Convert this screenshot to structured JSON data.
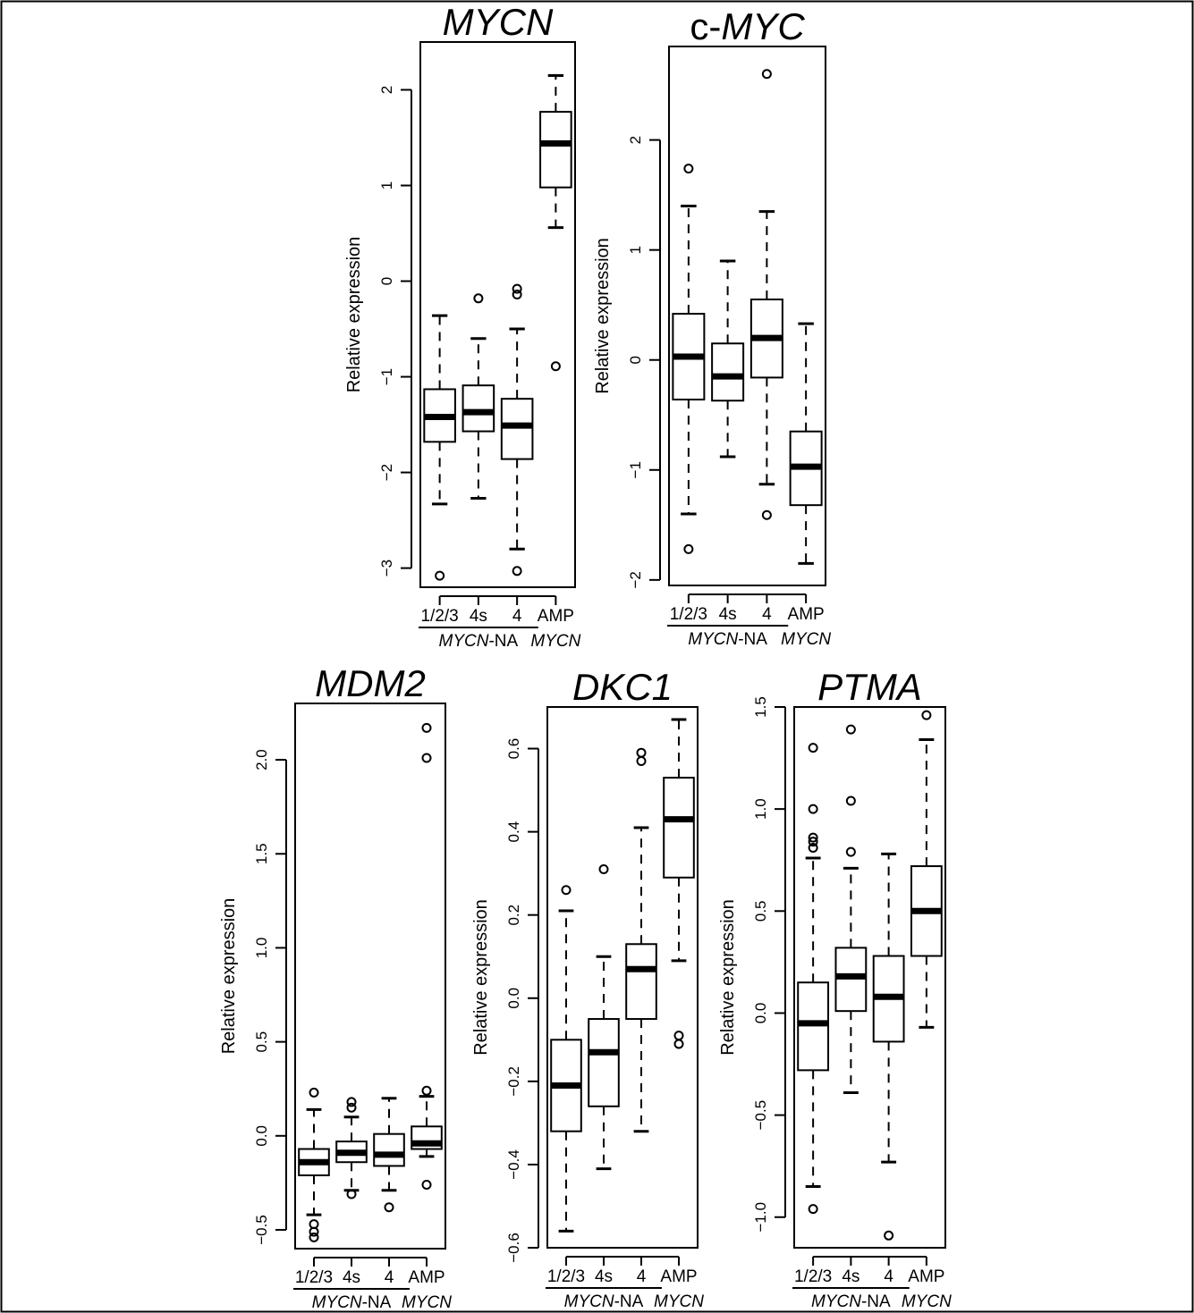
{
  "figure": {
    "group_label_na": {
      "italic": "MYCN",
      "plain": "-NA"
    },
    "group_label_amp": "MYCN"
  },
  "chart_data": [
    {
      "type": "boxplot",
      "title": "MYCN",
      "title_parts": [
        {
          "text": "MYCN",
          "italic": true
        }
      ],
      "ylabel": "Relative expression",
      "ylim": [
        -3.2,
        2.5
      ],
      "yticks": [
        -3,
        -2,
        -1,
        0,
        1,
        2
      ],
      "categories": [
        "1/2/3",
        "4s",
        "4",
        "AMP"
      ],
      "boxes": [
        {
          "category": "1/2/3",
          "whisker_low": -2.33,
          "q1": -1.68,
          "median": -1.42,
          "q3": -1.13,
          "whisker_high": -0.36,
          "outliers": [
            -3.08
          ]
        },
        {
          "category": "4s",
          "whisker_low": -2.27,
          "q1": -1.57,
          "median": -1.37,
          "q3": -1.09,
          "whisker_high": -0.6,
          "outliers": [
            -0.18
          ]
        },
        {
          "category": "4",
          "whisker_low": -2.8,
          "q1": -1.86,
          "median": -1.51,
          "q3": -1.23,
          "whisker_high": -0.5,
          "outliers": [
            -0.08,
            -0.14,
            -3.03
          ]
        },
        {
          "category": "AMP",
          "whisker_low": 0.56,
          "q1": 0.98,
          "median": 1.44,
          "q3": 1.77,
          "whisker_high": 2.15,
          "outliers": [
            -0.89
          ]
        }
      ]
    },
    {
      "type": "boxplot",
      "title": "c-MYC",
      "title_parts": [
        {
          "text": "c-",
          "italic": false
        },
        {
          "text": "MYC",
          "italic": true
        }
      ],
      "ylabel": "Relative expression",
      "ylim": [
        -2.05,
        2.85
      ],
      "yticks": [
        -2,
        -1,
        0,
        1,
        2
      ],
      "categories": [
        "1/2/3",
        "4s",
        "4",
        "AMP"
      ],
      "boxes": [
        {
          "category": "1/2/3",
          "whisker_low": -1.4,
          "q1": -0.36,
          "median": 0.03,
          "q3": 0.42,
          "whisker_high": 1.4,
          "outliers": [
            1.74,
            -1.72
          ]
        },
        {
          "category": "4s",
          "whisker_low": -0.88,
          "q1": -0.37,
          "median": -0.15,
          "q3": 0.15,
          "whisker_high": 0.9,
          "outliers": []
        },
        {
          "category": "4",
          "whisker_low": -1.13,
          "q1": -0.16,
          "median": 0.2,
          "q3": 0.55,
          "whisker_high": 1.35,
          "outliers": [
            2.6,
            -1.41
          ]
        },
        {
          "category": "AMP",
          "whisker_low": -1.85,
          "q1": -1.32,
          "median": -0.97,
          "q3": -0.65,
          "whisker_high": 0.33,
          "outliers": []
        }
      ]
    },
    {
      "type": "boxplot",
      "title": "MDM2",
      "title_parts": [
        {
          "text": "MDM2",
          "italic": true
        }
      ],
      "ylabel": "Relative expression",
      "ylim": [
        -0.6,
        2.3
      ],
      "yticks": [
        -0.5,
        0.0,
        0.5,
        1.0,
        1.5,
        2.0
      ],
      "categories": [
        "1/2/3",
        "4s",
        "4",
        "AMP"
      ],
      "boxes": [
        {
          "category": "1/2/3",
          "whisker_low": -0.42,
          "q1": -0.21,
          "median": -0.14,
          "q3": -0.07,
          "whisker_high": 0.14,
          "outliers": [
            0.23,
            -0.47,
            -0.51,
            -0.54
          ]
        },
        {
          "category": "4s",
          "whisker_low": -0.29,
          "q1": -0.14,
          "median": -0.09,
          "q3": -0.03,
          "whisker_high": 0.1,
          "outliers": [
            0.18,
            0.15,
            -0.31
          ]
        },
        {
          "category": "4",
          "whisker_low": -0.29,
          "q1": -0.16,
          "median": -0.1,
          "q3": 0.01,
          "whisker_high": 0.2,
          "outliers": [
            -0.38
          ]
        },
        {
          "category": "AMP",
          "whisker_low": -0.11,
          "q1": -0.07,
          "median": -0.04,
          "q3": 0.05,
          "whisker_high": 0.21,
          "outliers": [
            2.17,
            2.01,
            0.24,
            -0.26
          ]
        }
      ]
    },
    {
      "type": "boxplot",
      "title": "DKC1",
      "title_parts": [
        {
          "text": "DKC1",
          "italic": true
        }
      ],
      "ylabel": "Relative expression",
      "ylim": [
        -0.6,
        0.7
      ],
      "yticks": [
        -0.6,
        -0.4,
        -0.2,
        0.0,
        0.2,
        0.4,
        0.6
      ],
      "categories": [
        "1/2/3",
        "4s",
        "4",
        "AMP"
      ],
      "boxes": [
        {
          "category": "1/2/3",
          "whisker_low": -0.56,
          "q1": -0.32,
          "median": -0.21,
          "q3": -0.1,
          "whisker_high": 0.21,
          "outliers": [
            0.26
          ]
        },
        {
          "category": "4s",
          "whisker_low": -0.41,
          "q1": -0.26,
          "median": -0.13,
          "q3": -0.05,
          "whisker_high": 0.1,
          "outliers": [
            0.31
          ]
        },
        {
          "category": "4",
          "whisker_low": -0.32,
          "q1": -0.05,
          "median": 0.07,
          "q3": 0.13,
          "whisker_high": 0.41,
          "outliers": [
            0.59,
            0.57
          ]
        },
        {
          "category": "AMP",
          "whisker_low": 0.09,
          "q1": 0.29,
          "median": 0.43,
          "q3": 0.53,
          "whisker_high": 0.67,
          "outliers": [
            -0.09,
            -0.11
          ]
        }
      ]
    },
    {
      "type": "boxplot",
      "title": "PTMA",
      "title_parts": [
        {
          "text": "PTMA",
          "italic": true
        }
      ],
      "ylabel": "Relative expression",
      "ylim": [
        -1.15,
        1.5
      ],
      "yticks": [
        -1.0,
        -0.5,
        0.0,
        0.5,
        1.0,
        1.5
      ],
      "categories": [
        "1/2/3",
        "4s",
        "4",
        "AMP"
      ],
      "boxes": [
        {
          "category": "1/2/3",
          "whisker_low": -0.85,
          "q1": -0.28,
          "median": -0.05,
          "q3": 0.15,
          "whisker_high": 0.76,
          "outliers": [
            1.3,
            1.0,
            0.86,
            0.84,
            0.81,
            -0.96
          ]
        },
        {
          "category": "4s",
          "whisker_low": -0.39,
          "q1": 0.01,
          "median": 0.18,
          "q3": 0.32,
          "whisker_high": 0.71,
          "outliers": [
            1.39,
            1.04,
            0.79
          ]
        },
        {
          "category": "4",
          "whisker_low": -0.73,
          "q1": -0.14,
          "median": 0.08,
          "q3": 0.28,
          "whisker_high": 0.78,
          "outliers": [
            -1.09
          ]
        },
        {
          "category": "AMP",
          "whisker_low": -0.07,
          "q1": 0.28,
          "median": 0.5,
          "q3": 0.72,
          "whisker_high": 1.34,
          "outliers": [
            1.46
          ]
        }
      ]
    }
  ]
}
